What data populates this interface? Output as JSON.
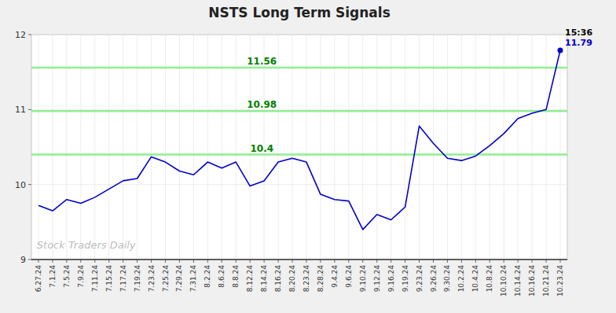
{
  "chart_data": {
    "type": "line",
    "title": "NSTS Long Term Signals",
    "categories": [
      "6.27.24",
      "7.1.24",
      "7.5.24",
      "7.9.24",
      "7.11.24",
      "7.15.24",
      "7.17.24",
      "7.19.24",
      "7.23.24",
      "7.25.24",
      "7.29.24",
      "7.31.24",
      "8.2.24",
      "8.6.24",
      "8.8.24",
      "8.12.24",
      "8.14.24",
      "8.16.24",
      "8.20.24",
      "8.23.24",
      "8.28.24",
      "9.4.24",
      "9.6.24",
      "9.10.24",
      "9.12.24",
      "9.16.24",
      "9.19.24",
      "9.23.24",
      "9.26.24",
      "9.30.24",
      "10.2.24",
      "10.4.24",
      "10.8.24",
      "10.10.24",
      "10.14.24",
      "10.16.24",
      "10.21.24",
      "10.23.24"
    ],
    "values": [
      9.72,
      9.65,
      9.8,
      9.75,
      9.83,
      9.94,
      10.05,
      10.08,
      10.37,
      10.3,
      10.18,
      10.13,
      10.3,
      10.22,
      10.3,
      9.98,
      10.05,
      10.3,
      10.35,
      10.3,
      9.87,
      9.8,
      9.78,
      9.4,
      9.6,
      9.53,
      9.7,
      10.78,
      10.55,
      10.35,
      10.32,
      10.38,
      10.52,
      10.68,
      10.88,
      10.95,
      11.0,
      11.79
    ],
    "color": "#0000cc",
    "hlines": {
      "values": [
        10.4,
        10.98,
        11.56
      ],
      "color": "#90ee90",
      "label_color": "#008000"
    },
    "annotations": [
      {
        "text": "15:36",
        "category": "10.23.24",
        "color": "#000000"
      },
      {
        "text": "11.79",
        "category": "10.23.24",
        "color": "#0000cc"
      }
    ],
    "watermark": "Stock Traders Daily",
    "ylim": [
      9,
      12
    ],
    "yticks": [
      9,
      10,
      11,
      12
    ],
    "grid": true
  }
}
